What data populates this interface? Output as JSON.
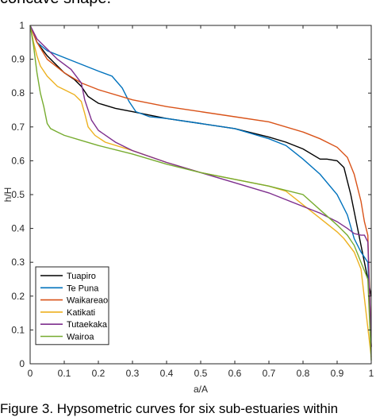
{
  "page": {
    "top_text": "concave shape.",
    "caption": "Figure 3.  Hypsometric curves for six sub-estuaries within"
  },
  "chart_data": {
    "type": "line",
    "title": "",
    "xlabel": "a/A",
    "ylabel": "h/H",
    "xlim": [
      0,
      1
    ],
    "ylim": [
      0,
      1
    ],
    "xticks": [
      0,
      0.1,
      0.2,
      0.3,
      0.4,
      0.5,
      0.6,
      0.7,
      0.8,
      0.9,
      1
    ],
    "yticks": [
      0,
      0.1,
      0.2,
      0.3,
      0.4,
      0.5,
      0.6,
      0.7,
      0.8,
      0.9,
      1
    ],
    "xtick_labels": [
      "0",
      "0.1",
      "0.2",
      "0.3",
      "0.4",
      "0.5",
      "0.6",
      "0.7",
      "0.8",
      "0.9",
      "1"
    ],
    "ytick_labels": [
      "0",
      "0.1",
      "0.2",
      "0.3",
      "0.4",
      "0.5",
      "0.6",
      "0.7",
      "0.8",
      "0.9",
      "1"
    ],
    "grid": false,
    "legend_position": "bottom-left",
    "series": [
      {
        "name": "Tuapiro",
        "color": "#000000",
        "points": [
          [
            0,
            1
          ],
          [
            0.02,
            0.95
          ],
          [
            0.05,
            0.91
          ],
          [
            0.08,
            0.88
          ],
          [
            0.1,
            0.86
          ],
          [
            0.13,
            0.84
          ],
          [
            0.15,
            0.82
          ],
          [
            0.17,
            0.79
          ],
          [
            0.2,
            0.77
          ],
          [
            0.25,
            0.755
          ],
          [
            0.3,
            0.745
          ],
          [
            0.35,
            0.735
          ],
          [
            0.4,
            0.725
          ],
          [
            0.5,
            0.71
          ],
          [
            0.6,
            0.695
          ],
          [
            0.7,
            0.67
          ],
          [
            0.75,
            0.655
          ],
          [
            0.8,
            0.635
          ],
          [
            0.85,
            0.605
          ],
          [
            0.87,
            0.605
          ],
          [
            0.9,
            0.6
          ],
          [
            0.92,
            0.58
          ],
          [
            0.94,
            0.5
          ],
          [
            0.96,
            0.4
          ],
          [
            0.98,
            0.3
          ],
          [
            1,
            0.2
          ]
        ]
      },
      {
        "name": "Te Puna",
        "color": "#0072BD",
        "points": [
          [
            0,
            1
          ],
          [
            0.02,
            0.95
          ],
          [
            0.05,
            0.925
          ],
          [
            0.1,
            0.905
          ],
          [
            0.15,
            0.885
          ],
          [
            0.2,
            0.865
          ],
          [
            0.24,
            0.85
          ],
          [
            0.27,
            0.815
          ],
          [
            0.29,
            0.775
          ],
          [
            0.31,
            0.745
          ],
          [
            0.35,
            0.73
          ],
          [
            0.4,
            0.725
          ],
          [
            0.5,
            0.71
          ],
          [
            0.6,
            0.695
          ],
          [
            0.7,
            0.665
          ],
          [
            0.75,
            0.645
          ],
          [
            0.8,
            0.605
          ],
          [
            0.85,
            0.56
          ],
          [
            0.9,
            0.5
          ],
          [
            0.93,
            0.44
          ],
          [
            0.95,
            0.37
          ],
          [
            0.97,
            0.33
          ],
          [
            0.99,
            0.3
          ],
          [
            1,
            0.05
          ]
        ]
      },
      {
        "name": "Waikareao",
        "color": "#D95319",
        "points": [
          [
            0,
            1
          ],
          [
            0.02,
            0.95
          ],
          [
            0.05,
            0.9
          ],
          [
            0.1,
            0.86
          ],
          [
            0.15,
            0.83
          ],
          [
            0.2,
            0.81
          ],
          [
            0.3,
            0.78
          ],
          [
            0.4,
            0.76
          ],
          [
            0.5,
            0.745
          ],
          [
            0.6,
            0.73
          ],
          [
            0.7,
            0.715
          ],
          [
            0.8,
            0.685
          ],
          [
            0.85,
            0.665
          ],
          [
            0.9,
            0.64
          ],
          [
            0.93,
            0.61
          ],
          [
            0.95,
            0.56
          ],
          [
            0.97,
            0.48
          ],
          [
            0.98,
            0.42
          ],
          [
            0.99,
            0.38
          ],
          [
            1,
            0.05
          ]
        ]
      },
      {
        "name": "Katikati",
        "color": "#EDB120",
        "points": [
          [
            0,
            1
          ],
          [
            0.01,
            0.95
          ],
          [
            0.02,
            0.91
          ],
          [
            0.03,
            0.88
          ],
          [
            0.05,
            0.85
          ],
          [
            0.08,
            0.82
          ],
          [
            0.1,
            0.81
          ],
          [
            0.13,
            0.795
          ],
          [
            0.15,
            0.775
          ],
          [
            0.16,
            0.74
          ],
          [
            0.17,
            0.7
          ],
          [
            0.19,
            0.675
          ],
          [
            0.22,
            0.655
          ],
          [
            0.3,
            0.63
          ],
          [
            0.4,
            0.595
          ],
          [
            0.5,
            0.565
          ],
          [
            0.6,
            0.545
          ],
          [
            0.7,
            0.525
          ],
          [
            0.75,
            0.51
          ],
          [
            0.8,
            0.47
          ],
          [
            0.85,
            0.43
          ],
          [
            0.9,
            0.39
          ],
          [
            0.92,
            0.37
          ],
          [
            0.95,
            0.33
          ],
          [
            0.97,
            0.28
          ],
          [
            1,
            0.02
          ]
        ]
      },
      {
        "name": "Tutaekaka",
        "color": "#7E2F8E",
        "points": [
          [
            0,
            1
          ],
          [
            0.02,
            0.96
          ],
          [
            0.05,
            0.93
          ],
          [
            0.08,
            0.9
          ],
          [
            0.12,
            0.87
          ],
          [
            0.15,
            0.83
          ],
          [
            0.16,
            0.78
          ],
          [
            0.18,
            0.72
          ],
          [
            0.2,
            0.69
          ],
          [
            0.25,
            0.655
          ],
          [
            0.3,
            0.63
          ],
          [
            0.4,
            0.595
          ],
          [
            0.5,
            0.565
          ],
          [
            0.6,
            0.535
          ],
          [
            0.7,
            0.505
          ],
          [
            0.75,
            0.485
          ],
          [
            0.8,
            0.465
          ],
          [
            0.85,
            0.445
          ],
          [
            0.9,
            0.42
          ],
          [
            0.93,
            0.4
          ],
          [
            0.95,
            0.385
          ],
          [
            0.97,
            0.38
          ],
          [
            0.98,
            0.38
          ],
          [
            0.99,
            0.36
          ],
          [
            1,
            0.05
          ]
        ]
      },
      {
        "name": "Wairoa",
        "color": "#77AC30",
        "points": [
          [
            0,
            1
          ],
          [
            0.01,
            0.94
          ],
          [
            0.02,
            0.86
          ],
          [
            0.03,
            0.8
          ],
          [
            0.04,
            0.76
          ],
          [
            0.05,
            0.71
          ],
          [
            0.06,
            0.695
          ],
          [
            0.08,
            0.685
          ],
          [
            0.1,
            0.675
          ],
          [
            0.15,
            0.66
          ],
          [
            0.2,
            0.645
          ],
          [
            0.3,
            0.62
          ],
          [
            0.4,
            0.59
          ],
          [
            0.5,
            0.565
          ],
          [
            0.6,
            0.545
          ],
          [
            0.7,
            0.525
          ],
          [
            0.8,
            0.5
          ],
          [
            0.85,
            0.455
          ],
          [
            0.9,
            0.41
          ],
          [
            0.93,
            0.38
          ],
          [
            0.95,
            0.35
          ],
          [
            0.97,
            0.3
          ],
          [
            0.99,
            0.25
          ],
          [
            1,
            0.01
          ]
        ]
      }
    ]
  }
}
